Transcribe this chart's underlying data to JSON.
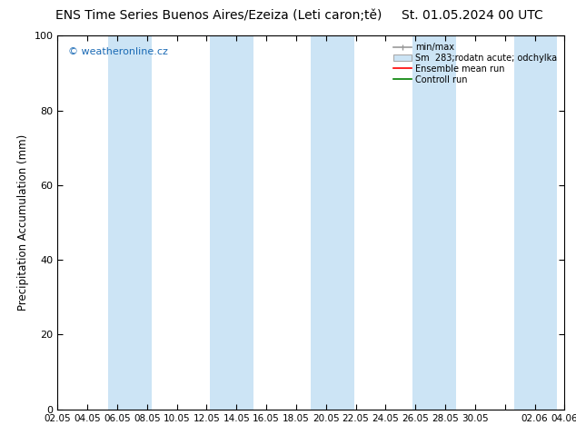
{
  "title_left": "ENS Time Series Buenos Aires/Ezeiza (Leti caron;tě)",
  "title_right": "St. 01.05.2024 00 UTC",
  "ylabel": "Precipitation Accumulation (mm)",
  "ylim": [
    0,
    100
  ],
  "yticks": [
    0,
    20,
    40,
    60,
    80,
    100
  ],
  "xtick_labels": [
    "02.05",
    "04.05",
    "06.05",
    "08.05",
    "10.05",
    "12.05",
    "14.05",
    "16.05",
    "18.05",
    "20.05",
    "22.05",
    "24.05",
    "26.05",
    "28.05",
    "30.05",
    "",
    "02.06",
    "04.06"
  ],
  "watermark": "© weatheronline.cz",
  "watermark_color": "#1a6ab5",
  "background_color": "#ffffff",
  "plot_bg_color": "#ffffff",
  "band_color": "#cce4f5",
  "legend_line_color": "#999999",
  "legend_patch_color": "#cce4f5",
  "ensemble_color": "#ff0000",
  "control_color": "#008000",
  "title_fontsize": 10,
  "axis_fontsize": 8,
  "band_xranges": [
    [
      3.5,
      6.5
    ],
    [
      10.5,
      13.5
    ],
    [
      17.5,
      20.5
    ],
    [
      24.5,
      27.5
    ],
    [
      31.5,
      34.5
    ]
  ],
  "n_xticks": 18,
  "x_min": 0,
  "x_max": 35
}
